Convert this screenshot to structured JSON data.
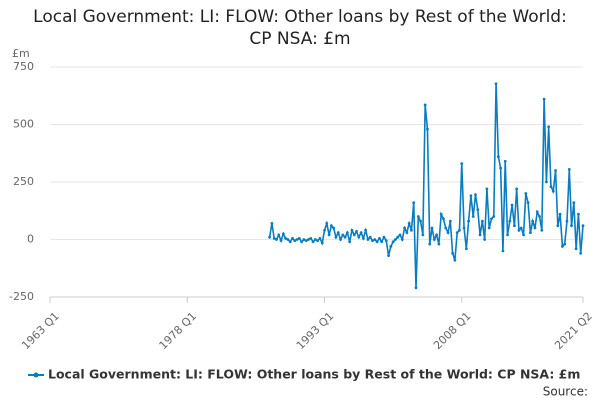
{
  "chart_data": {
    "type": "line",
    "title": "Local Government: LI: FLOW: Other loans by Rest of the World: CP NSA: £m",
    "y_label": "£m",
    "source": "Source:",
    "xlim": [
      1963,
      2021.25
    ],
    "xticks": [
      {
        "value": 1963,
        "label": "1963 Q1"
      },
      {
        "value": 1978,
        "label": "1978 Q1"
      },
      {
        "value": 1993,
        "label": "1993 Q1"
      },
      {
        "value": 2008,
        "label": "2008 Q1"
      },
      {
        "value": 2021.25,
        "label": "2021 Q2"
      }
    ],
    "ylim": [
      -250,
      750
    ],
    "yticks": [
      750,
      500,
      250,
      0,
      -250
    ],
    "grid": true,
    "legend": "bottom",
    "x": [
      1987,
      1987.25,
      1987.5,
      1987.75,
      1988,
      1988.25,
      1988.5,
      1988.75,
      1989,
      1989.25,
      1989.5,
      1989.75,
      1990,
      1990.25,
      1990.5,
      1990.75,
      1991,
      1991.25,
      1991.5,
      1991.75,
      1992,
      1992.25,
      1992.5,
      1992.75,
      1993,
      1993.25,
      1993.5,
      1993.75,
      1994,
      1994.25,
      1994.5,
      1994.75,
      1995,
      1995.25,
      1995.5,
      1995.75,
      1996,
      1996.25,
      1996.5,
      1996.75,
      1997,
      1997.25,
      1997.5,
      1997.75,
      1998,
      1998.25,
      1998.5,
      1998.75,
      1999,
      1999.25,
      1999.5,
      1999.75,
      2000,
      2000.25,
      2000.5,
      2000.75,
      2001,
      2001.25,
      2001.5,
      2001.75,
      2002,
      2002.25,
      2002.5,
      2002.75,
      2003,
      2003.25,
      2003.5,
      2003.75,
      2004,
      2004.25,
      2004.5,
      2004.75,
      2005,
      2005.25,
      2005.5,
      2005.75,
      2006,
      2006.25,
      2006.5,
      2006.75,
      2007,
      2007.25,
      2007.5,
      2007.75,
      2008,
      2008.25,
      2008.5,
      2008.75,
      2009,
      2009.25,
      2009.5,
      2009.75,
      2010,
      2010.25,
      2010.5,
      2010.75,
      2011,
      2011.25,
      2011.5,
      2011.75,
      2012,
      2012.25,
      2012.5,
      2012.75,
      2013,
      2013.25,
      2013.5,
      2013.75,
      2014,
      2014.25,
      2014.5,
      2014.75,
      2015,
      2015.25,
      2015.5,
      2015.75,
      2016,
      2016.25,
      2016.5,
      2016.75,
      2017,
      2017.25,
      2017.5,
      2017.75,
      2018,
      2018.25,
      2018.5,
      2018.75,
      2019,
      2019.25,
      2019.5,
      2019.75,
      2020,
      2020.25,
      2020.5,
      2020.75,
      2021,
      2021.25
    ],
    "series": [
      {
        "name": "Local Government: LI: FLOW: Other loans by Rest of the World: CP NSA: £m",
        "color": "#0a7cc1",
        "values": [
          10,
          70,
          5,
          0,
          20,
          -5,
          25,
          5,
          0,
          -10,
          5,
          -5,
          0,
          5,
          -10,
          0,
          -5,
          0,
          5,
          -10,
          0,
          -5,
          5,
          -15,
          40,
          70,
          20,
          60,
          50,
          10,
          30,
          0,
          20,
          10,
          30,
          -10,
          40,
          20,
          35,
          10,
          30,
          5,
          40,
          0,
          10,
          -5,
          0,
          -10,
          5,
          -10,
          10,
          -5,
          -70,
          -30,
          -10,
          0,
          10,
          20,
          0,
          50,
          30,
          70,
          40,
          160,
          -210,
          100,
          80,
          20,
          585,
          480,
          -20,
          50,
          0,
          20,
          -20,
          110,
          90,
          50,
          30,
          80,
          -60,
          -90,
          30,
          40,
          330,
          50,
          -40,
          80,
          190,
          100,
          195,
          130,
          20,
          80,
          0,
          220,
          50,
          90,
          100,
          677,
          360,
          310,
          -50,
          340,
          20,
          80,
          150,
          60,
          220,
          40,
          50,
          20,
          200,
          160,
          30,
          80,
          50,
          120,
          100,
          40,
          610,
          250,
          490,
          230,
          210,
          300,
          60,
          110,
          -30,
          -20,
          80,
          305,
          60,
          160,
          -40,
          110,
          -60,
          60
        ]
      }
    ]
  }
}
